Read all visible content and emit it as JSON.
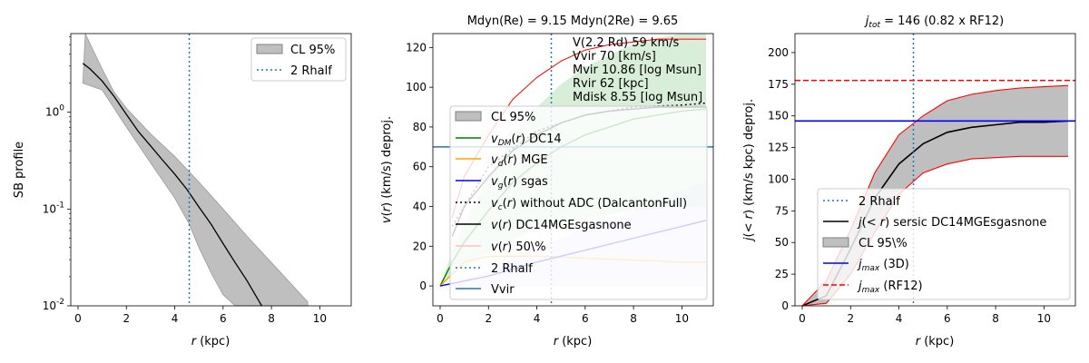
{
  "chart_data": [
    {
      "type": "line",
      "yscale": "log",
      "title": "",
      "xlabel": "r (kpc)",
      "ylabel": "SB profile",
      "xlim": [
        -0.3,
        11.3
      ],
      "ylim": [
        0.01,
        6.5
      ],
      "xticks": [
        "0",
        "2",
        "4",
        "6",
        "8",
        "10"
      ],
      "yticks": [
        {
          "label": "10^0",
          "value": 1
        },
        {
          "label": "10^-1",
          "value": 0.1
        },
        {
          "label": "10^-2",
          "value": 0.01
        }
      ],
      "legend": [
        "CL 95%",
        "2 Rhalf"
      ],
      "series": [
        {
          "name": "profile",
          "color": "#000000",
          "x": [
            0.2,
            0.5,
            1,
            1.5,
            2,
            2.5,
            3,
            3.5,
            4,
            4.5,
            5,
            5.5,
            6,
            6.5,
            7,
            7.5,
            7.6
          ],
          "y": [
            3.2,
            2.8,
            2.1,
            1.45,
            0.95,
            0.63,
            0.45,
            0.32,
            0.23,
            0.16,
            0.105,
            0.07,
            0.044,
            0.028,
            0.018,
            0.011,
            0.01
          ]
        },
        {
          "name": "CL 95% lower",
          "color": "#808080",
          "x": [
            0.2,
            1,
            2,
            3,
            4,
            4.6,
            5,
            5.5,
            6,
            6.5
          ],
          "y": [
            2.0,
            1.7,
            0.7,
            0.3,
            0.13,
            0.07,
            0.04,
            0.022,
            0.013,
            0.01
          ]
        },
        {
          "name": "CL 95% upper",
          "color": "#808080",
          "x": [
            0.3,
            0.6,
            1,
            1.5,
            2,
            3,
            4,
            5,
            6,
            7,
            8,
            9,
            9.5
          ],
          "y": [
            6.5,
            4.5,
            2.8,
            1.6,
            1.1,
            0.6,
            0.35,
            0.19,
            0.1,
            0.052,
            0.028,
            0.015,
            0.011
          ]
        }
      ],
      "vline": {
        "name": "2 Rhalf",
        "x": 4.6
      }
    },
    {
      "type": "line",
      "title": "Mdyn(Re) = 9.15  Mdyn(2Re) = 9.65",
      "xlabel": "r (kpc)",
      "ylabel": "v(r) (km/s) deproj.",
      "xlim": [
        -0.3,
        11.3
      ],
      "ylim": [
        -10,
        127
      ],
      "xticks": [
        "0",
        "2",
        "4",
        "6",
        "8",
        "10"
      ],
      "yticks": [
        "0",
        "20",
        "40",
        "60",
        "80",
        "100",
        "120"
      ],
      "annotations": [
        "V(2.2 Rd) 59 km/s",
        "Vvir 70 [km/s]",
        "Mvir 10.86 [log Msun]",
        "Rvir 62 [kpc]",
        "Mdisk 8.55 [log Msun]"
      ],
      "legend": [
        "CL 95%",
        "v_DM(r) DC14",
        "v_d(r) MGE",
        "v_g(r) sgas",
        "v_c(r) without ADC (DalcantonFull)",
        "v(r) DC14MGEsgasnone",
        "v(r) 50\\%",
        "2 Rhalf",
        "Vvir"
      ],
      "series": [
        {
          "name": "v_DM(r) DC14",
          "color": "#008000",
          "x": [
            0,
            0.5,
            1,
            2,
            3,
            4,
            5,
            6,
            7,
            8,
            9,
            10,
            11
          ],
          "y": [
            0,
            12,
            22,
            38,
            52,
            62,
            70,
            76,
            80,
            84,
            86,
            88,
            89
          ]
        },
        {
          "name": "v_d(r) MGE",
          "color": "#ffa500",
          "x": [
            0,
            1,
            2,
            4,
            6,
            8,
            10,
            11
          ],
          "y": [
            0,
            12,
            15,
            15,
            14,
            13,
            12,
            12
          ]
        },
        {
          "name": "v_g(r) sgas",
          "color": "#0000ff",
          "x": [
            0,
            2,
            4,
            6,
            8,
            10,
            11
          ],
          "y": [
            0,
            5,
            12,
            18,
            24,
            30,
            33
          ]
        },
        {
          "name": "v(r) DC14MGEsgasnone",
          "color": "#000000",
          "x": [
            0.5,
            1,
            2,
            3,
            4,
            5,
            6,
            7,
            8,
            9,
            10,
            11
          ],
          "y": [
            25,
            40,
            55,
            68,
            76,
            82,
            86,
            88,
            89,
            90,
            90,
            90
          ]
        },
        {
          "name": "v_c(r) without ADC",
          "color": "#000000",
          "x": [
            0.5,
            2,
            4,
            6,
            8,
            10,
            11
          ],
          "y": [
            30,
            60,
            78,
            86,
            90,
            91,
            92
          ]
        }
      ],
      "vline": {
        "name": "2 Rhalf",
        "x": 4.6
      },
      "hline": {
        "name": "Vvir",
        "y": 70
      }
    },
    {
      "type": "line",
      "title": "j_tot = 146 (0.82 x RF12)",
      "xlabel": "r (kpc)",
      "ylabel": "j(<r) (km/s kpc) deproj.",
      "xlim": [
        -0.3,
        11.3
      ],
      "ylim": [
        0,
        215
      ],
      "xticks": [
        "0",
        "2",
        "4",
        "6",
        "8",
        "10"
      ],
      "yticks": [
        "0",
        "25",
        "50",
        "75",
        "100",
        "125",
        "150",
        "175",
        "200"
      ],
      "legend": [
        "2 Rhalf",
        "j(<r) sersic DC14MGEsgasnone",
        "CL 95\\%",
        "j_max (3D)",
        "j_max (RF12)"
      ],
      "series": [
        {
          "name": "j(<r) sersic DC14MGEsgasnone",
          "color": "#000000",
          "x": [
            0,
            1,
            2,
            3,
            4,
            5,
            6,
            7,
            8,
            9,
            10,
            11
          ],
          "y": [
            0,
            8,
            45,
            85,
            112,
            128,
            137,
            141,
            143,
            145,
            145,
            146
          ]
        },
        {
          "name": "CL 95% upper",
          "color": "#ff0000",
          "x": [
            0,
            1,
            2,
            3,
            4,
            5,
            6,
            7,
            8,
            9,
            10,
            11
          ],
          "y": [
            0,
            20,
            60,
            105,
            135,
            150,
            162,
            167,
            170,
            172,
            173,
            174
          ]
        },
        {
          "name": "CL 95% lower",
          "color": "#ff0000",
          "x": [
            0,
            1,
            2,
            3,
            4,
            5,
            6,
            7,
            8,
            9,
            10,
            11
          ],
          "y": [
            0,
            2,
            25,
            58,
            88,
            105,
            112,
            116,
            117,
            118,
            118,
            118
          ]
        }
      ],
      "hlines": [
        {
          "name": "j_max (3D)",
          "y": 146,
          "color": "#0000ff"
        },
        {
          "name": "j_max (RF12)",
          "y": 178,
          "color": "#ff0000"
        }
      ],
      "vline": {
        "name": "2 Rhalf",
        "x": 4.6
      }
    }
  ]
}
